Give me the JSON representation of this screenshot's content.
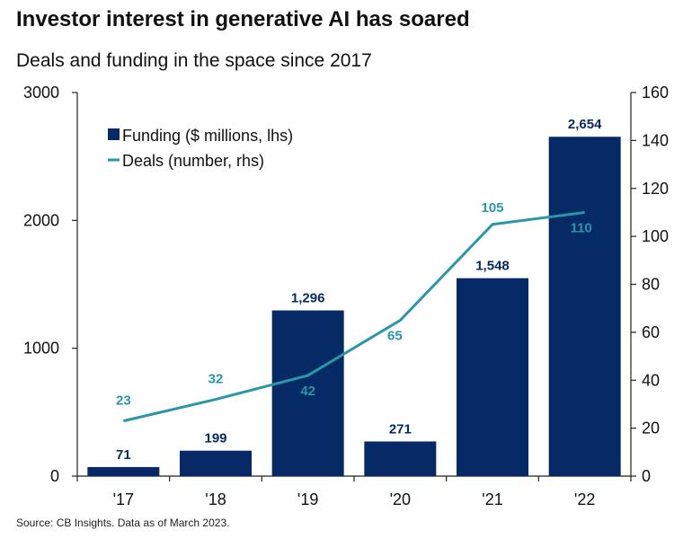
{
  "title": "Investor interest in generative AI has soared",
  "subtitle": "Deals and funding in the space since 2017",
  "source": "Source: CB Insights. Data as of March 2023.",
  "colors": {
    "bars": "#062a66",
    "line": "#2a97a9",
    "axis": "#222222"
  },
  "chart_data": {
    "type": "bar",
    "categories": [
      "'17",
      "'18",
      "'19",
      "'20",
      "'21",
      "'22"
    ],
    "series": [
      {
        "name": "Funding ($ millions, lhs)",
        "type": "bar",
        "axis": "left",
        "values": [
          71,
          199,
          1296,
          271,
          1548,
          2654
        ],
        "labels": [
          "71",
          "199",
          "1,296",
          "271",
          "1,548",
          "2,654"
        ]
      },
      {
        "name": "Deals (number, rhs)",
        "type": "line",
        "axis": "right",
        "values": [
          23,
          32,
          42,
          65,
          105,
          110
        ],
        "labels": [
          "23",
          "32",
          "42",
          "65",
          "105",
          "110"
        ]
      }
    ],
    "y_left": {
      "range": [
        0,
        3000
      ],
      "ticks": [
        "0",
        "1000",
        "2000",
        "3000"
      ]
    },
    "y_right": {
      "range": [
        0,
        160
      ],
      "ticks": [
        "0",
        "20",
        "40",
        "60",
        "80",
        "100",
        "120",
        "140",
        "160"
      ]
    },
    "grid": false,
    "legend": "top-left"
  }
}
